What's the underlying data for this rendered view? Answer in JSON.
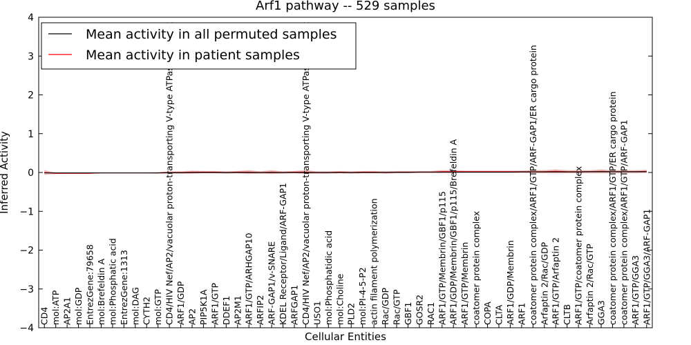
{
  "chart_data": {
    "type": "line",
    "title": "Arf1 pathway -- 529 samples",
    "xlabel": "Cellular Entities",
    "ylabel": "Inferred Activity",
    "ylim": [
      -4,
      4
    ],
    "yticks": [
      -4,
      -3,
      -2,
      -1,
      0,
      1,
      2,
      3,
      4
    ],
    "grid": false,
    "legend_position": "top-left",
    "colors": {
      "all": "#000000",
      "patient": "#ff0000",
      "band": "#cc6666"
    },
    "categories": [
      "CD4",
      "mol:ATP",
      "AP2A1",
      "mol:GDP",
      "EntrezGene:79658",
      "mol:Brefeldin A",
      "mol:Phosphatic acid",
      "EntrezGene:1313",
      "mol:DAG",
      "CYTH2",
      "mol:GTP",
      "CD4/HIV Nef/AP2/vacuolar proton-transporting V-type ATPase complex",
      "ARF1/GDP",
      "AP2",
      "PIP5K1A",
      "ARF1/GTP",
      "DDEF1",
      "AP2M1",
      "ARF1/GTP/ARHGAP10",
      "ARFIP2",
      "ARF-GAP1/v-SNARE",
      "KDEL Receptor/Ligand/ARF-GAP1",
      "ARFGAP1",
      "CD4/HIV Nef/AP2/vacuolar proton-transporting V-type ATPase complex",
      "USO1",
      "mol:Phosphatidic acid",
      "mol:Choline",
      "PLD2",
      "mol:PI-4-5-P2",
      "actin filament polymerization",
      "Rac/GDP",
      "Rac/GTP",
      "GBF1",
      "GOSR2",
      "RAC1",
      "ARF1/GTP/Membrin/GBF1/p115",
      "ARF1/GDP/Membrin/GBF1/p115/Brefeldin A",
      "ARF1/GTP/Membrin",
      "coatomer protein complex",
      "COPA",
      "CLTA",
      "ARF1/GDP/Membrin",
      "ARF1",
      "coatomer protein complex/ARF1/GTP/ARF-GAP1/ER cargo protein",
      "Arfaptin 2/Rac/GDP",
      "ARF1/GTP/Arfaptin 2",
      "CLTB",
      "ARF1/GTP/coatomer protein complex",
      "Arfaptin 2/Rac/GTP",
      "GGA3",
      "coatomer protein complex/ARF1/GTP/ER cargo protein",
      "coatomer protein complex/ARF1/GTP/ARF-GAP1",
      "ARF1/GTP/GGA3",
      "ARF1/GTP/GGA3/ARF-GAP1"
    ],
    "series": [
      {
        "name": "Mean activity in all permuted samples",
        "values": [
          -0.01,
          -0.01,
          -0.01,
          -0.01,
          -0.01,
          -0.01,
          -0.01,
          -0.01,
          -0.01,
          -0.01,
          -0.01,
          -0.005,
          -0.005,
          0,
          0,
          0,
          0,
          0,
          0,
          0,
          0,
          0,
          0,
          0,
          0,
          0,
          0,
          0,
          0,
          0,
          0.005,
          0.005,
          0.005,
          0.01,
          0.01,
          0.01,
          0.01,
          0.01,
          0.01,
          0.01,
          0.01,
          0.01,
          0.015,
          0.015,
          0.015,
          0.015,
          0.015,
          0.015,
          0.02,
          0.02,
          0.02,
          0.02,
          0.02,
          0.02
        ]
      },
      {
        "name": "Mean activity in patient samples",
        "values": [
          0.0,
          -0.02,
          -0.02,
          -0.02,
          -0.02,
          -0.01,
          -0.01,
          -0.01,
          -0.01,
          -0.01,
          -0.01,
          0.0,
          0.0,
          0.01,
          0.01,
          0.01,
          0.0,
          0.01,
          0.01,
          0.0,
          0.01,
          0.0,
          0.01,
          0.01,
          0.0,
          0.0,
          0.01,
          0.0,
          0.01,
          0.01,
          0.0,
          0.01,
          0.01,
          0.01,
          0.01,
          0.02,
          0.02,
          0.02,
          0.02,
          0.02,
          0.02,
          0.02,
          0.02,
          0.02,
          0.02,
          0.03,
          0.02,
          0.02,
          0.02,
          0.03,
          0.02,
          0.02,
          0.02,
          0.03
        ],
        "band": [
          0.06,
          0.02,
          0.01,
          0.01,
          0.01,
          0.01,
          0.01,
          0.01,
          0.01,
          0.01,
          0.02,
          0.03,
          0.03,
          0.04,
          0.03,
          0.03,
          0.03,
          0.03,
          0.05,
          0.03,
          0.05,
          0.03,
          0.03,
          0.05,
          0.03,
          0.03,
          0.03,
          0.03,
          0.03,
          0.03,
          0.03,
          0.03,
          0.03,
          0.03,
          0.03,
          0.04,
          0.04,
          0.03,
          0.03,
          0.03,
          0.03,
          0.03,
          0.03,
          0.04,
          0.04,
          0.05,
          0.04,
          0.04,
          0.04,
          0.05,
          0.04,
          0.04,
          0.04,
          0.04
        ]
      }
    ]
  }
}
